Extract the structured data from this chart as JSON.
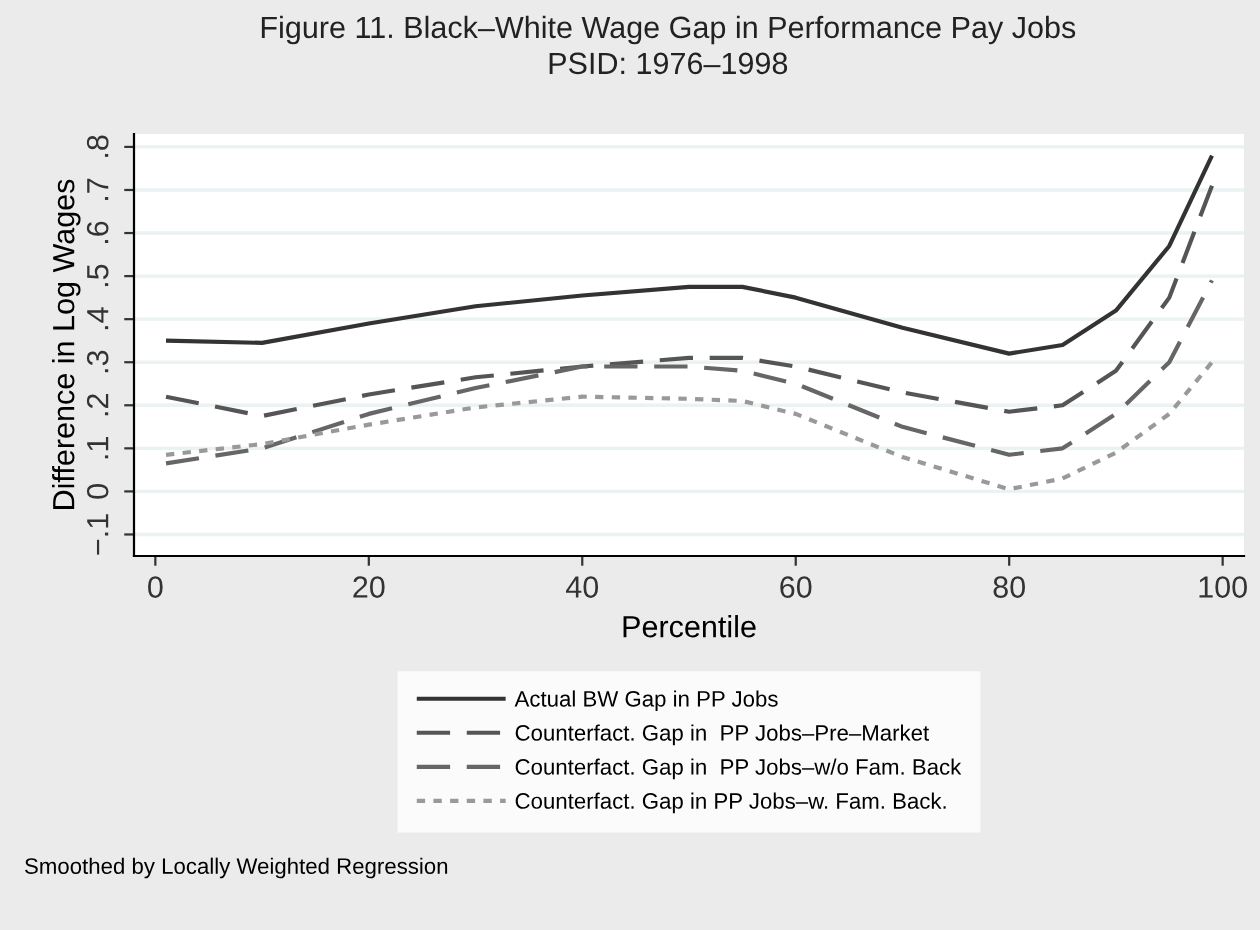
{
  "chart_data": {
    "type": "line",
    "title": "Figure 11. Black–White Wage Gap in Performance Pay Jobs",
    "subtitle": "PSID: 1976–1998",
    "xlabel": "Percentile",
    "ylabel": "Difference in Log Wages",
    "x": [
      1,
      10,
      20,
      30,
      40,
      50,
      55,
      60,
      70,
      80,
      85,
      90,
      95,
      99
    ],
    "series": [
      {
        "name": "Actual BW Gap in PP Jobs",
        "color": "#333333",
        "line_style": "solid",
        "values": [
          0.35,
          0.345,
          0.39,
          0.43,
          0.455,
          0.475,
          0.475,
          0.45,
          0.38,
          0.32,
          0.34,
          0.42,
          0.57,
          0.78
        ]
      },
      {
        "name": "Counterfact. Gap in  PP Jobs–Pre–Market",
        "color": "#555555",
        "line_style": "dashed",
        "values": [
          0.22,
          0.175,
          0.225,
          0.265,
          0.29,
          0.31,
          0.31,
          0.29,
          0.23,
          0.185,
          0.2,
          0.28,
          0.45,
          0.71
        ]
      },
      {
        "name": "Counterfact. Gap in  PP Jobs–w/o Fam. Back",
        "color": "#666666",
        "line_style": "dashed",
        "values": [
          0.065,
          0.1,
          0.18,
          0.24,
          0.29,
          0.29,
          0.28,
          0.25,
          0.15,
          0.085,
          0.1,
          0.18,
          0.3,
          0.49
        ]
      },
      {
        "name": "Counterfact. Gap in PP Jobs–w. Fam. Back.",
        "color": "#999999",
        "line_style": "dotted",
        "values": [
          0.085,
          0.11,
          0.155,
          0.195,
          0.22,
          0.215,
          0.21,
          0.18,
          0.08,
          0.005,
          0.03,
          0.09,
          0.18,
          0.3
        ]
      }
    ],
    "xlim": [
      -2,
      102
    ],
    "xticks": [
      0,
      20,
      40,
      60,
      80,
      100
    ],
    "ylim": [
      -0.15,
      0.83
    ],
    "yticks": [
      {
        "value": -0.1,
        "label": "−.1"
      },
      0,
      {
        "value": 0.1,
        "label": ".1"
      },
      {
        "value": 0.2,
        "label": ".2"
      },
      {
        "value": 0.3,
        "label": ".3"
      },
      {
        "value": 0.4,
        "label": ".4"
      },
      {
        "value": 0.5,
        "label": ".5"
      },
      {
        "value": 0.6,
        "label": ".6"
      },
      {
        "value": 0.7,
        "label": ".7"
      },
      {
        "value": 0.8,
        "label": ".8"
      }
    ],
    "grid": "y",
    "legend": "bottom",
    "annotations": [
      "Smoothed by Locally Weighted Regression"
    ]
  }
}
